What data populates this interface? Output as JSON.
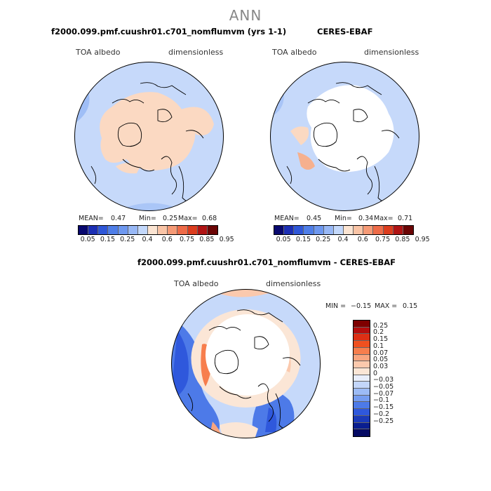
{
  "title": "ANN",
  "panels": [
    {
      "title": "f2000.099.pmf.cuushr01.c701_nomflumvm (yrs 1-1)",
      "var_label": "TOA albedo",
      "units": "dimensionless",
      "stats": {
        "mean_label": "MEAN=",
        "mean": "0.47",
        "min_label": "Min=",
        "min": "0.25",
        "max_label": "Max=",
        "max": "0.68"
      }
    },
    {
      "title": "CERES-EBAF",
      "var_label": "TOA albedo",
      "units": "dimensionless",
      "stats": {
        "mean_label": "MEAN=",
        "mean": "0.45",
        "min_label": "Min=",
        "min": "0.34",
        "max_label": "Max=",
        "max": "0.71"
      }
    },
    {
      "title": "f2000.099.pmf.cuushr01.c701_nomflumvm - CERES-EBAF",
      "var_label": "TOA albedo",
      "units": "dimensionless",
      "stats": {
        "min_label": "MIN =",
        "min": "−0.15",
        "max_label": "MAX =",
        "max": "0.15"
      }
    }
  ],
  "colorbar_top": {
    "colors": [
      "#08086e",
      "#1c2fb4",
      "#2f57d8",
      "#4f7ee8",
      "#6e98f0",
      "#98b8f6",
      "#c3d8fb",
      "#fbe4d2",
      "#f9c4a6",
      "#f59a76",
      "#ee6b48",
      "#dc3d1e",
      "#b01414",
      "#6b0505"
    ],
    "ticks": [
      "0.05",
      "0.15",
      "0.25",
      "0.4",
      "0.6",
      "0.75",
      "0.85",
      "0.95"
    ]
  },
  "colorbar_diff": {
    "colors": [
      "#7e0000",
      "#b50d0d",
      "#de2f14",
      "#f0501f",
      "#f77e4d",
      "#f9a57f",
      "#fbc9ad",
      "#fbe6d6",
      "#e9eefb",
      "#c3d6fa",
      "#9cbbf6",
      "#759cf0",
      "#4d7ae8",
      "#2f58dc",
      "#1b3ab9",
      "#0a1e90",
      "#050a63"
    ],
    "ticks": [
      "0.25",
      "0.2",
      "0.15",
      "0.1",
      "0.07",
      "0.05",
      "0.03",
      "0",
      "−0.03",
      "−0.05",
      "−0.07",
      "−0.1",
      "−0.15",
      "−0.2",
      "−0.25"
    ]
  }
}
